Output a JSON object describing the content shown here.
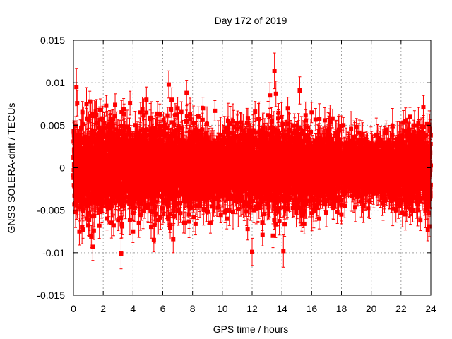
{
  "chart_data": {
    "type": "scatter",
    "title": "Day 172 of 2019",
    "xlabel": "GPS time / hours",
    "ylabel": "GNSS SOLERA-drift / TECUs",
    "xlim": [
      0,
      24
    ],
    "ylim": [
      -0.015,
      0.015
    ],
    "xticks": [
      0,
      2,
      4,
      6,
      8,
      10,
      12,
      14,
      16,
      18,
      20,
      22,
      24
    ],
    "yticks": [
      {
        "value": -0.015,
        "label": "-0.015"
      },
      {
        "value": -0.01,
        "label": "-0.01"
      },
      {
        "value": -0.005,
        "label": "-0.005"
      },
      {
        "value": 0,
        "label": "0"
      },
      {
        "value": 0.005,
        "label": "0.005"
      },
      {
        "value": 0.01,
        "label": "0.01"
      },
      {
        "value": 0.015,
        "label": "0.015"
      }
    ],
    "grid": true,
    "legend": "none",
    "marker": "filled-square",
    "error_bars": true,
    "series_color": "#ff0000",
    "notable_points": [
      {
        "x": 0.2,
        "y": 0.0095,
        "err": 0.0022
      },
      {
        "x": 0.25,
        "y": 0.0076,
        "err": 0.0015
      },
      {
        "x": 0.4,
        "y": -0.0075,
        "err": 0.0016
      },
      {
        "x": 0.6,
        "y": 0.0065,
        "err": 0.0013
      },
      {
        "x": 0.9,
        "y": 0.0058,
        "err": 0.0012
      },
      {
        "x": 1.0,
        "y": -0.0068,
        "err": 0.0012
      },
      {
        "x": 1.1,
        "y": 0.0078,
        "err": 0.0012
      },
      {
        "x": 1.2,
        "y": -0.0081,
        "err": 0.0013
      },
      {
        "x": 1.3,
        "y": -0.0093,
        "err": 0.0016
      },
      {
        "x": 1.5,
        "y": 0.0066,
        "err": 0.0012
      },
      {
        "x": 1.8,
        "y": 0.0068,
        "err": 0.0013
      },
      {
        "x": 2.2,
        "y": 0.0073,
        "err": 0.0012
      },
      {
        "x": 2.5,
        "y": 0.0057,
        "err": 0.001
      },
      {
        "x": 2.7,
        "y": -0.0068,
        "err": 0.0012
      },
      {
        "x": 2.8,
        "y": 0.0074,
        "err": 0.0013
      },
      {
        "x": 3.0,
        "y": -0.0062,
        "err": 0.0012
      },
      {
        "x": 3.2,
        "y": -0.0101,
        "err": 0.0018
      },
      {
        "x": 3.4,
        "y": 0.0063,
        "err": 0.0012
      },
      {
        "x": 3.8,
        "y": 0.0076,
        "err": 0.0014
      },
      {
        "x": 4.0,
        "y": -0.0075,
        "err": 0.0013
      },
      {
        "x": 4.5,
        "y": 0.0065,
        "err": 0.0012
      },
      {
        "x": 4.9,
        "y": 0.008,
        "err": 0.0015
      },
      {
        "x": 5.4,
        "y": -0.0085,
        "err": 0.0014
      },
      {
        "x": 5.8,
        "y": 0.0063,
        "err": 0.0012
      },
      {
        "x": 6.4,
        "y": 0.0098,
        "err": 0.0016
      },
      {
        "x": 6.5,
        "y": -0.0071,
        "err": 0.0013
      },
      {
        "x": 6.6,
        "y": 0.008,
        "err": 0.0014
      },
      {
        "x": 6.7,
        "y": -0.0084,
        "err": 0.0016
      },
      {
        "x": 7.0,
        "y": 0.007,
        "err": 0.0013
      },
      {
        "x": 7.5,
        "y": -0.0065,
        "err": 0.0013
      },
      {
        "x": 7.6,
        "y": 0.0088,
        "err": 0.0015
      },
      {
        "x": 8.2,
        "y": -0.0066,
        "err": 0.0013
      },
      {
        "x": 8.7,
        "y": 0.007,
        "err": 0.0013
      },
      {
        "x": 9.2,
        "y": -0.0065,
        "err": 0.0012
      },
      {
        "x": 9.5,
        "y": 0.0067,
        "err": 0.0012
      },
      {
        "x": 10.3,
        "y": -0.006,
        "err": 0.0012
      },
      {
        "x": 11.0,
        "y": 0.0052,
        "err": 0.001
      },
      {
        "x": 11.7,
        "y": -0.0072,
        "err": 0.0013
      },
      {
        "x": 12.0,
        "y": -0.0099,
        "err": 0.0016
      },
      {
        "x": 12.2,
        "y": 0.0066,
        "err": 0.0012
      },
      {
        "x": 12.7,
        "y": -0.0079,
        "err": 0.0013
      },
      {
        "x": 13.2,
        "y": 0.0085,
        "err": 0.0015
      },
      {
        "x": 13.4,
        "y": -0.008,
        "err": 0.0014
      },
      {
        "x": 13.5,
        "y": 0.0114,
        "err": 0.0021
      },
      {
        "x": 13.6,
        "y": 0.0087,
        "err": 0.0015
      },
      {
        "x": 14.1,
        "y": -0.0098,
        "err": 0.0019
      },
      {
        "x": 14.4,
        "y": 0.007,
        "err": 0.0013
      },
      {
        "x": 15.2,
        "y": 0.0091,
        "err": 0.0016
      },
      {
        "x": 15.5,
        "y": -0.0066,
        "err": 0.0012
      },
      {
        "x": 16.0,
        "y": 0.0065,
        "err": 0.0012
      },
      {
        "x": 16.5,
        "y": -0.006,
        "err": 0.0012
      },
      {
        "x": 17.4,
        "y": 0.0058,
        "err": 0.0011
      },
      {
        "x": 18.0,
        "y": -0.0055,
        "err": 0.0011
      },
      {
        "x": 19.0,
        "y": 0.0048,
        "err": 0.001
      },
      {
        "x": 19.8,
        "y": -0.0048,
        "err": 0.001
      },
      {
        "x": 21.0,
        "y": 0.0045,
        "err": 0.001
      },
      {
        "x": 21.9,
        "y": -0.0045,
        "err": 0.001
      },
      {
        "x": 22.6,
        "y": 0.006,
        "err": 0.0011
      },
      {
        "x": 23.3,
        "y": -0.0062,
        "err": 0.0012
      },
      {
        "x": 23.5,
        "y": 0.0071,
        "err": 0.0014
      },
      {
        "x": 23.8,
        "y": -0.0073,
        "err": 0.0013
      },
      {
        "x": 23.9,
        "y": -0.0069,
        "err": 0.0012
      }
    ],
    "band_profile": {
      "x": [
        0,
        1,
        2,
        3,
        4,
        5,
        6,
        7,
        8,
        9,
        10,
        11,
        12,
        13,
        14,
        15,
        16,
        17,
        18,
        19,
        20,
        21,
        22,
        23,
        24
      ],
      "sigma": [
        0.003,
        0.0033,
        0.0031,
        0.003,
        0.003,
        0.003,
        0.0031,
        0.0029,
        0.0027,
        0.0025,
        0.0024,
        0.0024,
        0.0026,
        0.0029,
        0.0029,
        0.0028,
        0.0026,
        0.0024,
        0.0022,
        0.002,
        0.0019,
        0.002,
        0.0023,
        0.0026,
        0.0029
      ]
    },
    "bulk_points_per_hour": 240,
    "bulk_point_generation": "pseudo-random draws from band_profile (not individually readable)"
  }
}
